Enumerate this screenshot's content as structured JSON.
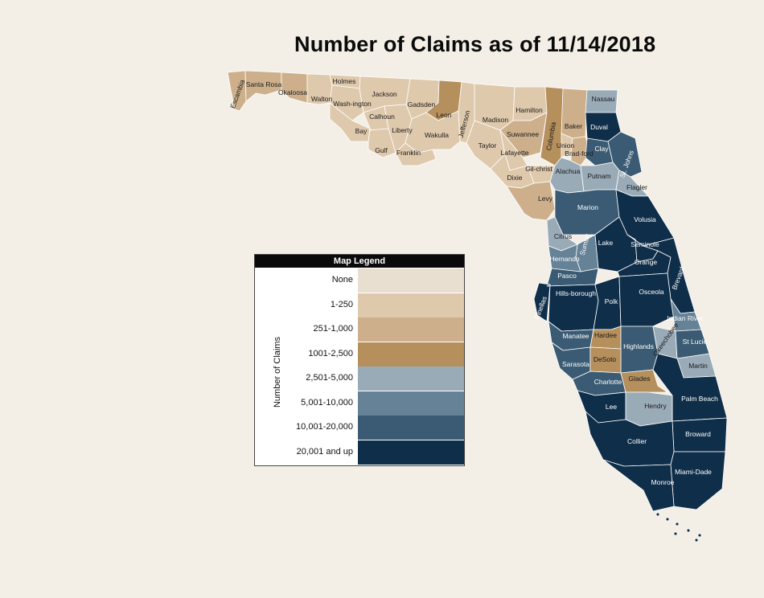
{
  "title": "Number of Claims as of 11/14/2018",
  "legend": {
    "header": "Map Legend",
    "axis_label": "Number of Claims",
    "items": [
      {
        "label": "None",
        "color": "#e9dfd0"
      },
      {
        "label": "1-250",
        "color": "#dfc9ac"
      },
      {
        "label": "251-1,000",
        "color": "#cdb08b"
      },
      {
        "label": "1001-2,500",
        "color": "#b58f5c"
      },
      {
        "label": "2,501-5,000",
        "color": "#9aabb8"
      },
      {
        "label": "5,001-10,000",
        "color": "#658297"
      },
      {
        "label": "10,001-20,000",
        "color": "#3a5b73"
      },
      {
        "label": "20,001 and up",
        "color": "#0f2e49"
      }
    ]
  },
  "counties": {
    "escambia": {
      "label": "Escambia",
      "tier": 2
    },
    "santa_rosa": {
      "label": "Santa Rosa",
      "tier": 2
    },
    "okaloosa": {
      "label": "Okaloosa",
      "tier": 2
    },
    "walton": {
      "label": "Walton",
      "tier": 1
    },
    "holmes": {
      "label": "Holmes",
      "tier": 1
    },
    "washington": {
      "label": "Wash-ington",
      "tier": 1
    },
    "bay": {
      "label": "Bay",
      "tier": 1
    },
    "jackson": {
      "label": "Jackson",
      "tier": 1
    },
    "calhoun": {
      "label": "Calhoun",
      "tier": 1
    },
    "gulf": {
      "label": "Gulf",
      "tier": 1
    },
    "liberty": {
      "label": "Liberty",
      "tier": 1
    },
    "gadsden": {
      "label": "Gadsden",
      "tier": 1
    },
    "franklin": {
      "label": "Franklin",
      "tier": 1
    },
    "leon": {
      "label": "Leon",
      "tier": 3
    },
    "wakulla": {
      "label": "Wakulla",
      "tier": 1
    },
    "jefferson": {
      "label": "Jefferson",
      "tier": 1
    },
    "madison": {
      "label": "Madison",
      "tier": 1
    },
    "taylor": {
      "label": "Taylor",
      "tier": 1
    },
    "hamilton": {
      "label": "Hamilton",
      "tier": 1
    },
    "suwannee": {
      "label": "Suwannee",
      "tier": 2
    },
    "lafayette": {
      "label": "Lafayette",
      "tier": 1
    },
    "columbia": {
      "label": "Columbia",
      "tier": 3
    },
    "baker": {
      "label": "Baker",
      "tier": 2
    },
    "union": {
      "label": "Union",
      "tier": 1
    },
    "bradford": {
      "label": "Brad-ford",
      "tier": 2
    },
    "dixie": {
      "label": "Dixie",
      "tier": 1
    },
    "gilchrist": {
      "label": "Gil-christ",
      "tier": 1
    },
    "levy": {
      "label": "Levy",
      "tier": 2
    },
    "nassau": {
      "label": "Nassau",
      "tier": 4
    },
    "duval": {
      "label": "Duval",
      "tier": 7
    },
    "clay": {
      "label": "Clay",
      "tier": 6
    },
    "st_johns": {
      "label": "St. Johns",
      "tier": 6
    },
    "alachua": {
      "label": "Alachua",
      "tier": 4
    },
    "putnam": {
      "label": "Putnam",
      "tier": 4
    },
    "flagler": {
      "label": "Flagler",
      "tier": 4
    },
    "marion": {
      "label": "Marion",
      "tier": 6
    },
    "volusia": {
      "label": "Volusia",
      "tier": 7
    },
    "citrus": {
      "label": "Citrus",
      "tier": 4
    },
    "sumter": {
      "label": "Sumter",
      "tier": 5
    },
    "lake": {
      "label": "Lake",
      "tier": 7
    },
    "seminole": {
      "label": "Seminole",
      "tier": 7
    },
    "hernando": {
      "label": "Hernando",
      "tier": 5
    },
    "orange": {
      "label": "Orange",
      "tier": 7
    },
    "pasco": {
      "label": "Pasco",
      "tier": 6
    },
    "brevard": {
      "label": "Brevard",
      "tier": 7
    },
    "pinellas": {
      "label": "Pinellas",
      "tier": 7
    },
    "hillsborough": {
      "label": "Hills-borough",
      "tier": 7
    },
    "polk": {
      "label": "Polk",
      "tier": 7
    },
    "osceola": {
      "label": "Osceola",
      "tier": 7
    },
    "indian_river": {
      "label": "Indian River",
      "tier": 5
    },
    "manatee": {
      "label": "Manatee",
      "tier": 6
    },
    "hardee": {
      "label": "Hardee",
      "tier": 3
    },
    "highlands": {
      "label": "Highlands",
      "tier": 6
    },
    "okeechobee": {
      "label": "Okeechobee",
      "tier": 4
    },
    "st_lucie": {
      "label": "St Lucie",
      "tier": 6
    },
    "sarasota": {
      "label": "Sarasota",
      "tier": 6
    },
    "desoto": {
      "label": "DeSoto",
      "tier": 3
    },
    "martin": {
      "label": "Martin",
      "tier": 4
    },
    "charlotte": {
      "label": "Charlotte",
      "tier": 6
    },
    "glades": {
      "label": "Glades",
      "tier": 3
    },
    "palm_beach": {
      "label": "Palm Beach",
      "tier": 7
    },
    "lee": {
      "label": "Lee",
      "tier": 7
    },
    "hendry": {
      "label": "Hendry",
      "tier": 4
    },
    "broward": {
      "label": "Broward",
      "tier": 7
    },
    "collier": {
      "label": "Collier",
      "tier": 7
    },
    "miami_dade": {
      "label": "Miami-Dade",
      "tier": 7
    },
    "monroe": {
      "label": "Monroe",
      "tier": 7
    }
  }
}
